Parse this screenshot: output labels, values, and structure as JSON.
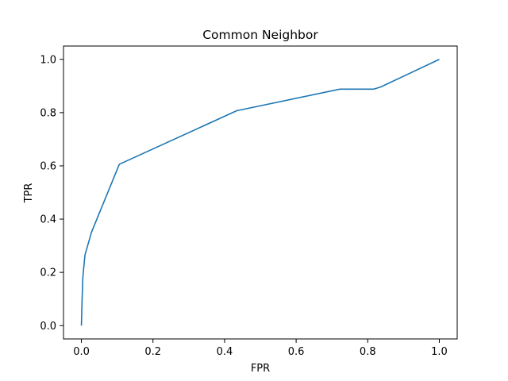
{
  "chart_data": {
    "type": "line",
    "title": "Common Neighbor",
    "xlabel": "FPR",
    "ylabel": "TPR",
    "xlim": [
      -0.05,
      1.05
    ],
    "ylim": [
      -0.05,
      1.05
    ],
    "grid": false,
    "legend": "none",
    "colors": {
      "line": "#1f77b4",
      "axes": "#000000",
      "background": "#ffffff"
    },
    "x_ticks": [
      {
        "value": 0.0,
        "label": "0.0"
      },
      {
        "value": 0.2,
        "label": "0.2"
      },
      {
        "value": 0.4,
        "label": "0.4"
      },
      {
        "value": 0.6,
        "label": "0.6"
      },
      {
        "value": 0.8,
        "label": "0.8"
      },
      {
        "value": 1.0,
        "label": "1.0"
      }
    ],
    "y_ticks": [
      {
        "value": 0.0,
        "label": "0.0"
      },
      {
        "value": 0.2,
        "label": "0.2"
      },
      {
        "value": 0.4,
        "label": "0.4"
      },
      {
        "value": 0.6,
        "label": "0.6"
      },
      {
        "value": 0.8,
        "label": "0.8"
      },
      {
        "value": 1.0,
        "label": "1.0"
      }
    ],
    "series": [
      {
        "x": [
          0.0,
          0.002,
          0.004,
          0.006,
          0.01,
          0.028,
          0.106,
          0.434,
          0.722,
          0.816,
          0.836,
          1.0
        ],
        "y": [
          0.0,
          0.1,
          0.18,
          0.21,
          0.265,
          0.35,
          0.606,
          0.807,
          0.888,
          0.888,
          0.896,
          1.0
        ]
      }
    ]
  }
}
